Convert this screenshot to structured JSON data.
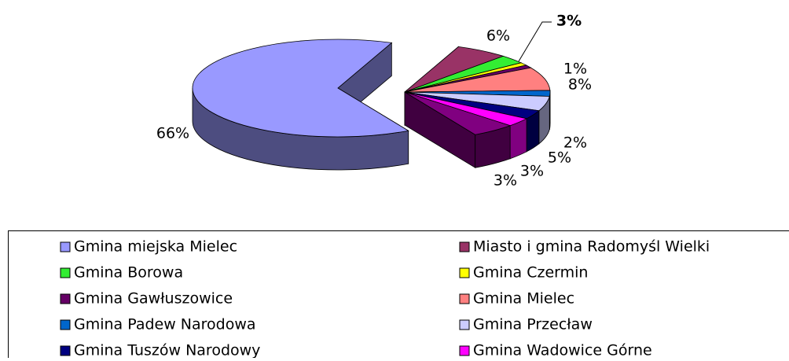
{
  "chart_data": {
    "type": "pie3d",
    "categories": [
      "Gmina miejska Mielec",
      "Miasto i gmina Radomyśl Wielki",
      "Gmina Borowa",
      "Gmina Czermin",
      "Gmina Gawłuszowice",
      "Gmina Mielec",
      "Gmina Padew Narodowa",
      "Gmina Przecław",
      "Gmina Tuszów Narodowy",
      "Gmina Wadowice Górne",
      null
    ],
    "values": [
      66,
      6,
      3,
      1,
      1,
      8,
      2,
      5,
      3,
      3,
      5
    ],
    "value_labels": [
      "66%",
      "6%",
      "3%",
      "1%",
      null,
      "8%",
      "2%",
      "5%",
      "3%",
      "3%",
      null
    ],
    "colors": [
      "#9999ff",
      "#993366",
      "#33ee33",
      "#ffff00",
      "#660066",
      "#ff8080",
      "#0066cc",
      "#ccccff",
      "#000080",
      "#ff00ff",
      "#800080"
    ]
  }
}
